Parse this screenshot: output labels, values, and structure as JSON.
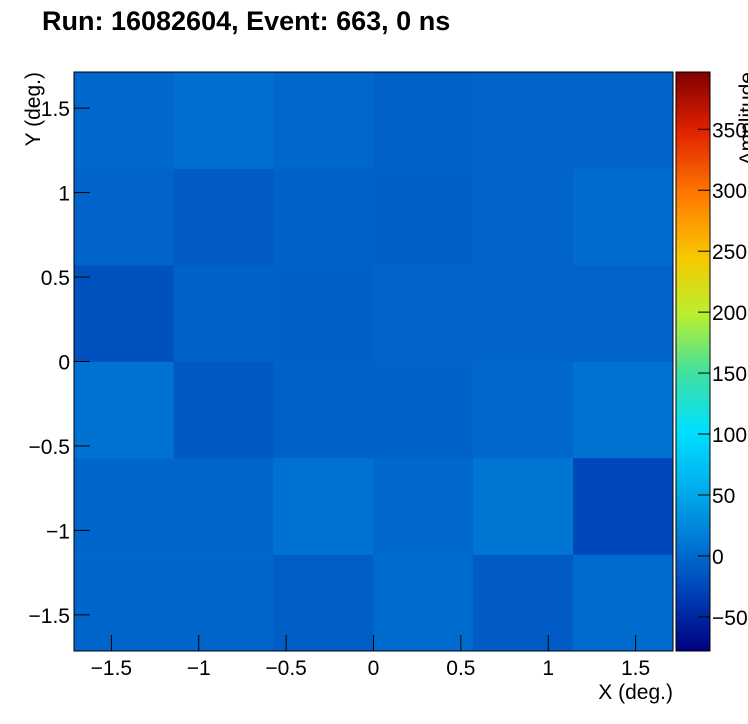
{
  "chart_data": {
    "type": "heatmap",
    "title": "Run: 16082604, Event: 663, 0 ns",
    "x_label": "X (deg.)",
    "y_label": "Y (deg.)",
    "z_label": "Amplitude",
    "xbins": [
      -1.714,
      -1.143,
      -0.571,
      0,
      0.571,
      1.143,
      1.714
    ],
    "ybins": [
      -1.714,
      -1.143,
      -0.571,
      0,
      0.571,
      1.143,
      1.714
    ],
    "z": [
      [
        -2,
        -2,
        -8,
        2,
        -10,
        2
      ],
      [
        -2,
        -2,
        8,
        0,
        10,
        -25
      ],
      [
        8,
        -12,
        -5,
        -4,
        0,
        8
      ],
      [
        -18,
        -5,
        -6,
        -3,
        -3,
        -3
      ],
      [
        -3,
        -10,
        -5,
        -6,
        -3,
        3
      ],
      [
        0,
        5,
        0,
        -5,
        -3,
        -3
      ]
    ],
    "xlim": [
      -1.714,
      1.714
    ],
    "ylim": [
      -1.714,
      1.714
    ],
    "zlim": [
      -78,
      397
    ],
    "xticks": [
      {
        "value": -1.5,
        "label": "−1.5"
      },
      {
        "value": -1,
        "label": "−1"
      },
      {
        "value": -0.5,
        "label": "−0.5"
      },
      0,
      0.5,
      1,
      1.5
    ],
    "yticks": [
      {
        "value": -1.5,
        "label": "−1.5"
      },
      {
        "value": -1,
        "label": "−1"
      },
      {
        "value": -0.5,
        "label": "−0.5"
      },
      0,
      0.5,
      1,
      1.5
    ],
    "zticks": [
      {
        "value": -50,
        "label": "−50"
      },
      0,
      50,
      100,
      150,
      200,
      250,
      300,
      350
    ],
    "colorscale": [
      [
        0,
        "#00007f"
      ],
      [
        0.1,
        "#0040b8"
      ],
      [
        0.2,
        "#007fd8"
      ],
      [
        0.3,
        "#00b8f0"
      ],
      [
        0.38,
        "#00e0ff"
      ],
      [
        0.48,
        "#40e0a0"
      ],
      [
        0.58,
        "#b8f030"
      ],
      [
        0.68,
        "#f8c800"
      ],
      [
        0.79,
        "#ff7800"
      ],
      [
        0.9,
        "#e02000"
      ],
      [
        1,
        "#800000"
      ]
    ]
  }
}
